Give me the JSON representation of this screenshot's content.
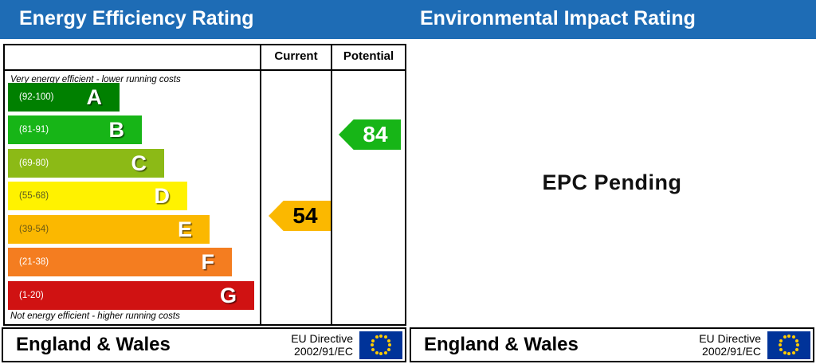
{
  "left": {
    "header": "Energy Efficiency Rating",
    "columns": {
      "current": "Current",
      "potential": "Potential"
    },
    "top_note": "Very energy efficient - lower running costs",
    "bottom_note": "Not energy efficient - higher running costs",
    "bands": [
      {
        "letter": "A",
        "range": "(92-100)",
        "color": "#008000",
        "label_color": "#ffffff"
      },
      {
        "letter": "B",
        "range": "(81-91)",
        "color": "#17b517",
        "label_color": "#ffffff"
      },
      {
        "letter": "C",
        "range": "(69-80)",
        "color": "#8cba16",
        "label_color": "#ffffff"
      },
      {
        "letter": "D",
        "range": "(55-68)",
        "color": "#fff200",
        "label_color": "#5c5c22"
      },
      {
        "letter": "E",
        "range": "(39-54)",
        "color": "#fbb800",
        "label_color": "#6e5a14"
      },
      {
        "letter": "F",
        "range": "(21-38)",
        "color": "#f47d20",
        "label_color": "#ffffff"
      },
      {
        "letter": "G",
        "range": "(1-20)",
        "color": "#d01212",
        "label_color": "#ffffff"
      }
    ],
    "current": {
      "value": "54",
      "color": "#fbb800",
      "text_color": "#000000"
    },
    "potential": {
      "value": "84",
      "color": "#17b517",
      "text_color": "#ffffff"
    }
  },
  "right": {
    "header": "Environmental Impact Rating",
    "message": "EPC Pending"
  },
  "footer": {
    "region": "England & Wales",
    "directive_line1": "EU Directive",
    "directive_line2": "2002/91/EC",
    "flag_color": "#003399",
    "star_color": "#ffcc00"
  },
  "colors": {
    "header_blue": "#1e6cb5"
  },
  "chart_data": {
    "type": "bar",
    "title": "Energy Efficiency Rating",
    "categories": [
      "A",
      "B",
      "C",
      "D",
      "E",
      "F",
      "G"
    ],
    "band_ranges": [
      "92-100",
      "81-91",
      "69-80",
      "55-68",
      "39-54",
      "21-38",
      "1-20"
    ],
    "band_colors": [
      "#008000",
      "#17b517",
      "#8cba16",
      "#fff200",
      "#fbb800",
      "#f47d20",
      "#d01212"
    ],
    "notes": [
      "Very energy efficient - lower running costs",
      "Not energy efficient - higher running costs"
    ],
    "current_rating": 54,
    "current_band": "E",
    "potential_rating": 84,
    "potential_band": "B",
    "environmental_impact_rating": "EPC Pending",
    "legend_position": "none",
    "grid": false
  }
}
